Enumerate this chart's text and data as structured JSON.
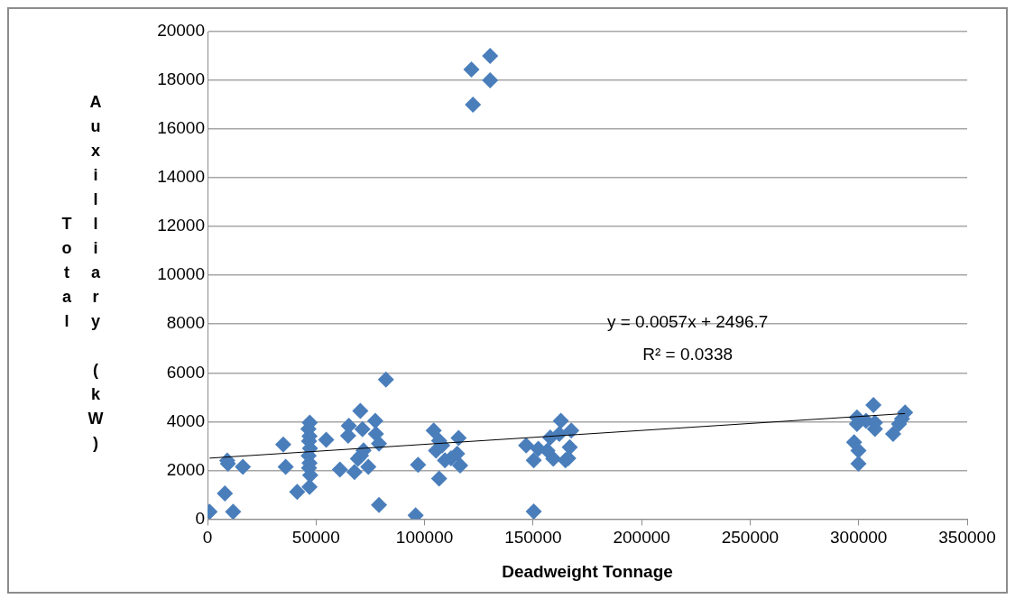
{
  "chart_data": {
    "type": "scatter",
    "xlabel": "Deadweight Tonnage",
    "ylabel": "Total Auxilliary (kW)",
    "xlim": [
      0,
      350000
    ],
    "xticks": [
      0,
      50000,
      100000,
      150000,
      200000,
      250000,
      300000,
      350000
    ],
    "ylim": [
      0,
      20000
    ],
    "yticks": [
      0,
      2000,
      4000,
      6000,
      8000,
      10000,
      12000,
      14000,
      16000,
      18000,
      20000
    ],
    "grid": "y",
    "legend": false,
    "marker": "diamond",
    "annotations": [
      "y = 0.0057x + 2496.7",
      "R² = 0.0338"
    ],
    "series": [
      {
        "type": "scatter",
        "color": "#4a7ebb",
        "x": [
          950,
          8000,
          11800,
          9400,
          9100,
          16300,
          34900,
          36000,
          47100,
          41300,
          47000,
          46500,
          47000,
          46800,
          47200,
          46600,
          47000,
          46800,
          47300,
          54700,
          61000,
          67700,
          65100,
          64800,
          70400,
          77300,
          71400,
          71900,
          74100,
          79000,
          77600,
          70700,
          82200,
          79000,
          69300,
          95900,
          97000,
          104200,
          106700,
          115700,
          116400,
          105300,
          109400,
          115000,
          106700,
          108100,
          112200,
          150300,
          146800,
          150300,
          152400,
          159300,
          164900,
          162800,
          167600,
          157900,
          162100,
          166900,
          156600,
          166200,
          130200,
          121600,
          130200,
          122300,
          306800,
          299200,
          299200,
          297900,
          299900,
          299900,
          307500,
          307500,
          315900,
          321400,
          318600,
          320000,
          303400
        ],
        "values": [
          300,
          1050,
          300,
          2270,
          2400,
          2140,
          3060,
          2140,
          3960,
          1120,
          1320,
          3700,
          3400,
          3200,
          2900,
          2600,
          2300,
          2100,
          1800,
          3250,
          2030,
          1930,
          3830,
          3420,
          4440,
          4030,
          3690,
          2820,
          2140,
          3100,
          3490,
          2610,
          5720,
          580,
          2480,
          150,
          2230,
          3630,
          1660,
          3330,
          2200,
          2810,
          2410,
          2680,
          3220,
          3020,
          2490,
          310,
          3020,
          2410,
          2880,
          2480,
          2410,
          4030,
          3630,
          3350,
          3490,
          2950,
          2810,
          2490,
          19000,
          18450,
          18000,
          17000,
          4680,
          4170,
          3900,
          3150,
          2810,
          2270,
          3960,
          3700,
          3490,
          4370,
          3900,
          4110,
          4030
        ]
      },
      {
        "type": "line",
        "color": "#000000",
        "marker": "none",
        "x": [
          950,
          321400
        ],
        "values": [
          2500,
          4330
        ]
      }
    ]
  }
}
